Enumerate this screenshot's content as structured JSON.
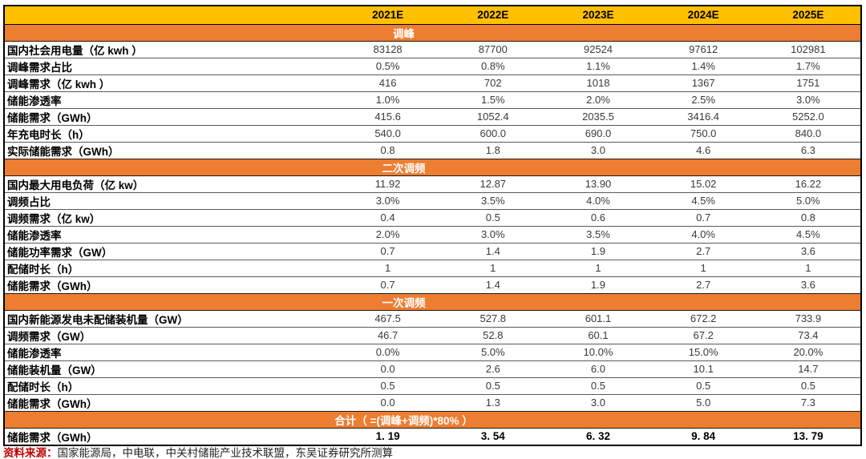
{
  "colors": {
    "header_bg": "#FFC000",
    "section_bg": "#ED7D31",
    "section_text": "#FFFFFF",
    "value_text": "#3A3A3A",
    "note_red": "#C00000"
  },
  "table": {
    "header": {
      "corner": "",
      "years": [
        "2021E",
        "2022E",
        "2023E",
        "2024E",
        "2025E"
      ]
    },
    "sections": [
      {
        "title": "调峰",
        "rows": [
          {
            "label": "国内社会用电量（亿 kwh ）",
            "values": [
              "83128",
              "87700",
              "92524",
              "97612",
              "102981"
            ]
          },
          {
            "label": "调峰需求占比",
            "values": [
              "0.5%",
              "0.8%",
              "1.1%",
              "1.4%",
              "1.7%"
            ]
          },
          {
            "label": "调峰需求（亿 kwh ）",
            "values": [
              "416",
              "702",
              "1018",
              "1367",
              "1751"
            ]
          },
          {
            "label": "储能渗透率",
            "values": [
              "1.0%",
              "1.5%",
              "2.0%",
              "2.5%",
              "3.0%"
            ]
          },
          {
            "label": "储能需求（GWh）",
            "values": [
              "415.6",
              "1052.4",
              "2035.5",
              "3416.4",
              "5252.0"
            ]
          },
          {
            "label": "年充电时长（h）",
            "values": [
              "540.0",
              "600.0",
              "690.0",
              "750.0",
              "840.0"
            ]
          },
          {
            "label": "实际储能需求（GWh）",
            "values": [
              "0.8",
              "1.8",
              "3.0",
              "4.6",
              "6.3"
            ]
          }
        ]
      },
      {
        "title": "二次调频",
        "rows": [
          {
            "label": "国内最大用电负荷（亿 kw）",
            "values": [
              "11.92",
              "12.87",
              "13.90",
              "15.02",
              "16.22"
            ]
          },
          {
            "label": "调频占比",
            "values": [
              "3.0%",
              "3.5%",
              "4.0%",
              "4.5%",
              "5.0%"
            ]
          },
          {
            "label": "调频需求（亿 kw）",
            "values": [
              "0.4",
              "0.5",
              "0.6",
              "0.7",
              "0.8"
            ]
          },
          {
            "label": "储能渗透率",
            "values": [
              "2.0%",
              "3.0%",
              "3.5%",
              "4.0%",
              "4.5%"
            ]
          },
          {
            "label": "储能功率需求（GW）",
            "values": [
              "0.7",
              "1.4",
              "1.9",
              "2.7",
              "3.6"
            ]
          },
          {
            "label": "配储时长（h）",
            "values": [
              "1",
              "1",
              "1",
              "1",
              "1"
            ]
          },
          {
            "label": "储能需求（GWh）",
            "values": [
              "0.7",
              "1.4",
              "1.9",
              "2.7",
              "3.6"
            ]
          }
        ]
      },
      {
        "title": "一次调频",
        "rows": [
          {
            "label": "国内新能源发电未配储装机量（GW）",
            "values": [
              "467.5",
              "527.8",
              "601.1",
              "672.2",
              "733.9"
            ]
          },
          {
            "label": "调频需求（GW）",
            "values": [
              "46.7",
              "52.8",
              "60.1",
              "67.2",
              "73.4"
            ]
          },
          {
            "label": "储能渗透率",
            "values": [
              "0.0%",
              "5.0%",
              "10.0%",
              "15.0%",
              "20.0%"
            ]
          },
          {
            "label": "储能装机量（GW）",
            "values": [
              "0.0",
              "2.6",
              "6.0",
              "10.1",
              "14.7"
            ]
          },
          {
            "label": "配储时长（h）",
            "values": [
              "0.5",
              "0.5",
              "0.5",
              "0.5",
              "0.5"
            ]
          },
          {
            "label": "储能需求（GWh）",
            "values": [
              "0.0",
              "1.3",
              "3.0",
              "5.0",
              "7.3"
            ]
          }
        ]
      },
      {
        "title": "合计（ =(调峰+调频)*80% ）",
        "rows": [
          {
            "label": "储能需求（GWh）",
            "values": [
              "1. 19",
              "3. 54",
              "6. 32",
              "9. 84",
              "13. 79"
            ],
            "bold": true
          }
        ]
      }
    ]
  },
  "footer": {
    "source_prefix": "资料来源：",
    "source_text": "国家能源局，中电联，中关村储能产业技术联盟，东吴证券研究所测算"
  }
}
